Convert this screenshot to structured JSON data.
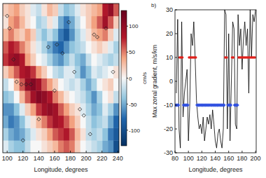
{
  "chart_data": [
    {
      "type": "heatmap",
      "xlabel": "Longitude, degrees",
      "x": [
        98,
        105,
        112,
        119,
        126,
        133,
        140,
        147,
        154,
        161,
        168,
        175,
        182,
        189,
        196,
        203,
        210,
        217,
        224,
        231,
        238
      ],
      "y": [
        1,
        2,
        3,
        4,
        5,
        6,
        7,
        8,
        9,
        10,
        11,
        12
      ],
      "z": [
        [
          -10,
          -30,
          -40,
          -40,
          -20,
          0,
          0,
          10,
          20,
          30,
          50,
          60,
          50,
          20,
          0,
          -10,
          -20,
          -30,
          -50,
          -60,
          -100
        ],
        [
          -30,
          -50,
          -60,
          -50,
          -30,
          -10,
          10,
          20,
          40,
          60,
          70,
          80,
          60,
          30,
          10,
          -20,
          -30,
          -20,
          -40,
          -70,
          -90
        ],
        [
          -50,
          -70,
          -60,
          -40,
          -10,
          10,
          30,
          50,
          70,
          90,
          80,
          60,
          40,
          20,
          0,
          -20,
          -40,
          -30,
          -20,
          -50,
          -80
        ],
        [
          -60,
          -60,
          -40,
          -10,
          20,
          40,
          70,
          90,
          100,
          90,
          60,
          40,
          20,
          10,
          -10,
          -30,
          -50,
          -40,
          -10,
          -30,
          -60
        ],
        [
          -40,
          -30,
          0,
          30,
          60,
          90,
          110,
          100,
          80,
          50,
          30,
          10,
          0,
          -10,
          -20,
          -40,
          -60,
          -30,
          0,
          10,
          -20
        ],
        [
          -20,
          0,
          30,
          60,
          100,
          110,
          90,
          60,
          40,
          20,
          0,
          -10,
          -20,
          -10,
          -30,
          -50,
          -30,
          0,
          10,
          20,
          0
        ],
        [
          20,
          40,
          60,
          80,
          90,
          70,
          40,
          20,
          0,
          -20,
          -30,
          -10,
          -10,
          -30,
          -60,
          -40,
          -10,
          -20,
          -10,
          0,
          10
        ],
        [
          70,
          90,
          100,
          80,
          40,
          20,
          0,
          -10,
          -30,
          -50,
          -60,
          -40,
          -20,
          -40,
          -50,
          -20,
          0,
          -10,
          -20,
          -30,
          -20
        ],
        [
          60,
          80,
          70,
          50,
          30,
          10,
          -10,
          -30,
          -50,
          -70,
          -80,
          -60,
          -40,
          -30,
          -20,
          0,
          10,
          20,
          10,
          -10,
          -30
        ],
        [
          30,
          50,
          30,
          20,
          40,
          20,
          -20,
          -40,
          -20,
          -40,
          -70,
          -90,
          -60,
          -30,
          -10,
          10,
          30,
          40,
          50,
          20,
          -10
        ],
        [
          10,
          40,
          50,
          30,
          10,
          0,
          -30,
          -20,
          10,
          -10,
          -50,
          -70,
          -50,
          -20,
          0,
          20,
          40,
          60,
          90,
          60,
          20
        ],
        [
          20,
          30,
          40,
          20,
          10,
          -10,
          -20,
          10,
          30,
          20,
          -20,
          -40,
          -30,
          -10,
          10,
          20,
          30,
          40,
          80,
          100,
          60
        ]
      ],
      "xlim": [
        94.5,
        241.5
      ],
      "xticks": [
        100,
        120,
        140,
        160,
        180,
        200,
        220,
        240
      ],
      "ylim": [
        0.5,
        12.5
      ],
      "tick_labels": "x",
      "colorbar": {
        "label": "cm/s",
        "range": [
          -130,
          130
        ],
        "ticks": [
          -100,
          -50,
          0,
          50,
          100
        ]
      },
      "series": [
        {
          "type": "scatter",
          "marker": "diamond",
          "color": "#222222",
          "x": [
            100,
            103,
            108,
            112,
            118,
            124,
            130,
            152,
            163,
            170,
            185,
            192,
            197,
            205,
            210,
            214,
            225,
            234,
            120,
            140,
            160,
            178
          ],
          "values": [
            11.5,
            10.5,
            8,
            6.2,
            6,
            6,
            6,
            9,
            9.2,
            8.5,
            7,
            4,
            3.5,
            2,
            10,
            9.8,
            10.5,
            7,
            1.5,
            3.2,
            5.5,
            11
          ]
        }
      ]
    },
    {
      "type": "line",
      "title": "b)",
      "xlabel": "Longitude, degrees",
      "ylabel": "Max zonal gradient, m/s/km",
      "xlim": [
        80,
        201
      ],
      "xticks": [
        80,
        100,
        120,
        140,
        160,
        180,
        200
      ],
      "ylim": [
        -30,
        30
      ],
      "yticks": [
        -30,
        -20,
        -10,
        0,
        10,
        20,
        30
      ],
      "series": [
        {
          "type": "line",
          "color": "#000000",
          "x": [
            82,
            84,
            86,
            88,
            90,
            92,
            94,
            96,
            98,
            100,
            102,
            104,
            106,
            108,
            110,
            112,
            114,
            116,
            118,
            120,
            122,
            124,
            126,
            128,
            130,
            132,
            134,
            136,
            138,
            140,
            142,
            144,
            146,
            148,
            150,
            152,
            154,
            156,
            158,
            160,
            162,
            164,
            166,
            168,
            170,
            172,
            174,
            176,
            178,
            180,
            182,
            184,
            186,
            188,
            190,
            192,
            194,
            196,
            198,
            200
          ],
          "values": [
            -5,
            26,
            -20,
            -28,
            25,
            -15,
            -5,
            0,
            5,
            -25,
            -10,
            20,
            15,
            25,
            10,
            -8,
            -15,
            -20,
            -18,
            -22,
            -15,
            -25,
            -20,
            -15,
            -18,
            -14,
            -20,
            -12,
            -18,
            -25,
            -28,
            -22,
            -20,
            -25,
            -28,
            -20,
            30,
            28,
            -20,
            20,
            -25,
            0,
            25,
            22,
            -18,
            -20,
            28,
            15,
            22,
            5,
            18,
            25,
            15,
            22,
            -5,
            30,
            10,
            28,
            25,
            30
          ]
        },
        {
          "type": "scatter",
          "marker": "circle",
          "color": "#e0201b",
          "x": [
            87,
            89,
            91,
            101,
            103,
            105,
            107,
            109,
            111,
            155,
            157,
            165,
            167,
            175,
            177,
            179,
            181,
            183,
            185,
            187,
            189,
            191,
            193,
            195,
            197,
            199
          ],
          "values": [
            10,
            10,
            10,
            10,
            10,
            10,
            10,
            10,
            10,
            10,
            10,
            10,
            10,
            10,
            10,
            10,
            10,
            10,
            10,
            10,
            10,
            10,
            10,
            10,
            10,
            10
          ]
        },
        {
          "type": "scatter",
          "marker": "diamond",
          "color": "#3050e0",
          "x": [
            81,
            83,
            85,
            93,
            95,
            97,
            99,
            113,
            115,
            117,
            119,
            121,
            123,
            125,
            127,
            129,
            131,
            133,
            135,
            137,
            139,
            141,
            143,
            145,
            147,
            149,
            151,
            153,
            159,
            161,
            163,
            169,
            171,
            173
          ],
          "values": [
            -10,
            -10,
            -10,
            -10,
            -10,
            -10,
            -10,
            -10,
            -10,
            -10,
            -10,
            -10,
            -10,
            -10,
            -10,
            -10,
            -10,
            -10,
            -10,
            -10,
            -10,
            -10,
            -10,
            -10,
            -10,
            -10,
            -10,
            -10,
            -10,
            -10,
            -10,
            -10,
            -10,
            -10
          ]
        }
      ]
    }
  ]
}
